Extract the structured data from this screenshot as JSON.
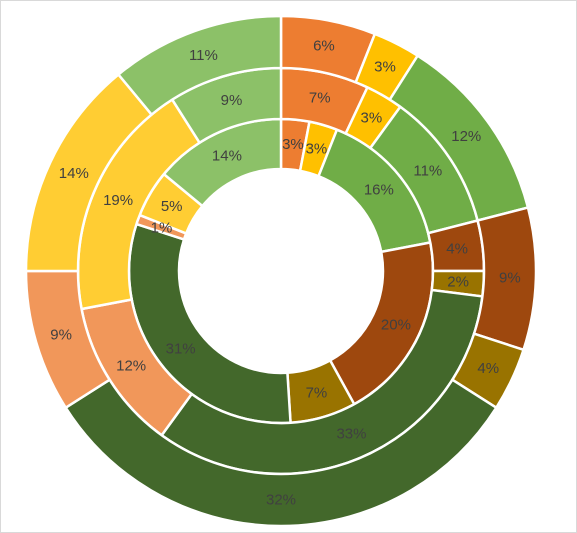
{
  "chart_data": {
    "type": "doughnut",
    "title": "",
    "colors": {
      "orange": "#ED7D31",
      "yellow": "#FFC000",
      "light_green": "#70AD47",
      "brown": "#9E480E",
      "olive": "#997300",
      "dark_green": "#43682B",
      "pale_yellow": "#FFCD33",
      "pale_green": "#8CC168",
      "salmon": "#F1975A"
    },
    "rings": [
      {
        "name": "",
        "slices": [
          {
            "value": 3,
            "label": "3%",
            "color": "orange"
          },
          {
            "value": 3,
            "label": "3%",
            "color": "yellow"
          },
          {
            "value": 16,
            "label": "16%",
            "color": "light_green"
          },
          {
            "value": 20,
            "label": "20%",
            "color": "brown"
          },
          {
            "value": 7,
            "label": "7%",
            "color": "olive"
          },
          {
            "value": 31,
            "label": "31%",
            "color": "dark_green"
          },
          {
            "value": 1,
            "label": "1%",
            "color": "salmon"
          },
          {
            "value": 5,
            "label": "5%",
            "color": "pale_yellow"
          },
          {
            "value": 14,
            "label": "14%",
            "color": "pale_green"
          }
        ]
      },
      {
        "name": "",
        "slices": [
          {
            "value": 7,
            "label": "7%",
            "color": "orange"
          },
          {
            "value": 3,
            "label": "3%",
            "color": "yellow"
          },
          {
            "value": 11,
            "label": "11%",
            "color": "light_green"
          },
          {
            "value": 4,
            "label": "4%",
            "color": "brown"
          },
          {
            "value": 2,
            "label": "2%",
            "color": "olive"
          },
          {
            "value": 33,
            "label": "33%",
            "color": "dark_green"
          },
          {
            "value": 12,
            "label": "12%",
            "color": "salmon"
          },
          {
            "value": 19,
            "label": "19%",
            "color": "pale_yellow"
          },
          {
            "value": 9,
            "label": "9%",
            "color": "pale_green"
          }
        ]
      },
      {
        "name": "",
        "slices": [
          {
            "value": 6,
            "label": "6%",
            "color": "orange"
          },
          {
            "value": 3,
            "label": "3%",
            "color": "yellow"
          },
          {
            "value": 12,
            "label": "12%",
            "color": "light_green"
          },
          {
            "value": 9,
            "label": "9%",
            "color": "brown"
          },
          {
            "value": 4,
            "label": "4%",
            "color": "olive"
          },
          {
            "value": 32,
            "label": "32%",
            "color": "dark_green"
          },
          {
            "value": 9,
            "label": "9%",
            "color": "salmon"
          },
          {
            "value": 14,
            "label": "14%",
            "color": "pale_yellow"
          },
          {
            "value": 11,
            "label": "11%",
            "color": "pale_green"
          }
        ]
      }
    ],
    "label_colors": {
      "on_dark": "#404040",
      "on_light": "#404040"
    },
    "legend": "none"
  }
}
